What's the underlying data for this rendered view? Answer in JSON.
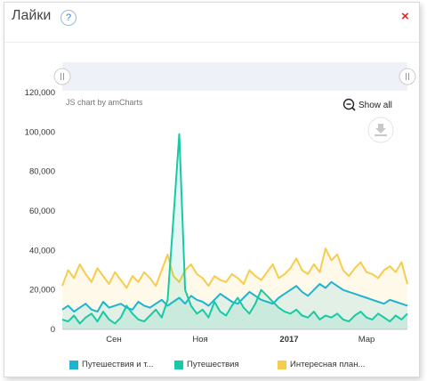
{
  "window": {
    "title": "Лайки",
    "help_label": "?",
    "close_label": "×"
  },
  "credit": "JS chart by amCharts",
  "show_all": "Show all",
  "colors": {
    "series1": "#1fb3d0",
    "series2": "#17c9a5",
    "series3": "#f7cc4d",
    "scrollbar": "#eef2f8"
  },
  "legend": [
    "Путешествия и т...",
    "Путешествия",
    "Интересная план..."
  ],
  "chart_data": {
    "type": "area",
    "y_ticks": [
      "120,000",
      "100,000",
      "80,000",
      "60,000",
      "40,000",
      "20,000",
      "0"
    ],
    "x_ticks": [
      "Сен",
      "Ноя",
      "2017",
      "Мар"
    ],
    "ylim": [
      0,
      120000
    ],
    "series": [
      {
        "name": "Путешествия и т...",
        "values": [
          10000,
          12000,
          9000,
          11000,
          13000,
          10000,
          9000,
          14000,
          11000,
          12000,
          13000,
          11000,
          10000,
          14000,
          12000,
          11000,
          13000,
          15000,
          12000,
          14000,
          16000,
          13000,
          17000,
          15000,
          14000,
          12000,
          15000,
          18000,
          16000,
          14000,
          13000,
          16000,
          19000,
          17000,
          15000,
          14000,
          13000,
          16000,
          18000,
          20000,
          22000,
          19000,
          17000,
          20000,
          23000,
          21000,
          24000,
          22000,
          20000,
          19000,
          18000,
          17000,
          16000,
          15000,
          14000,
          13000,
          15000,
          14000,
          13000,
          12000
        ]
      },
      {
        "name": "Путешествия",
        "values": [
          5000,
          4000,
          7000,
          3000,
          6000,
          8000,
          4000,
          9000,
          5000,
          3000,
          6000,
          12000,
          8000,
          5000,
          4000,
          7000,
          10000,
          6000,
          15000,
          56000,
          99000,
          20000,
          12000,
          8000,
          10000,
          6000,
          14000,
          9000,
          7000,
          12000,
          16000,
          11000,
          8000,
          13000,
          20000,
          17000,
          14000,
          11000,
          9000,
          8000,
          10000,
          7000,
          6000,
          9000,
          5000,
          7000,
          6000,
          8000,
          5000,
          4000,
          7000,
          9000,
          6000,
          5000,
          8000,
          6000,
          4000,
          7000,
          5000,
          8000
        ]
      },
      {
        "name": "Интересная план...",
        "values": [
          22000,
          30000,
          26000,
          33000,
          28000,
          24000,
          31000,
          27000,
          23000,
          29000,
          25000,
          21000,
          27000,
          24000,
          29000,
          26000,
          22000,
          30000,
          38000,
          27000,
          24000,
          30000,
          33000,
          28000,
          26000,
          22000,
          27000,
          25000,
          24000,
          28000,
          26000,
          23000,
          30000,
          27000,
          25000,
          29000,
          33000,
          26000,
          28000,
          31000,
          36000,
          30000,
          28000,
          33000,
          29000,
          41000,
          35000,
          38000,
          30000,
          27000,
          31000,
          34000,
          29000,
          28000,
          26000,
          30000,
          32000,
          29000,
          34000,
          23000
        ]
      }
    ]
  }
}
